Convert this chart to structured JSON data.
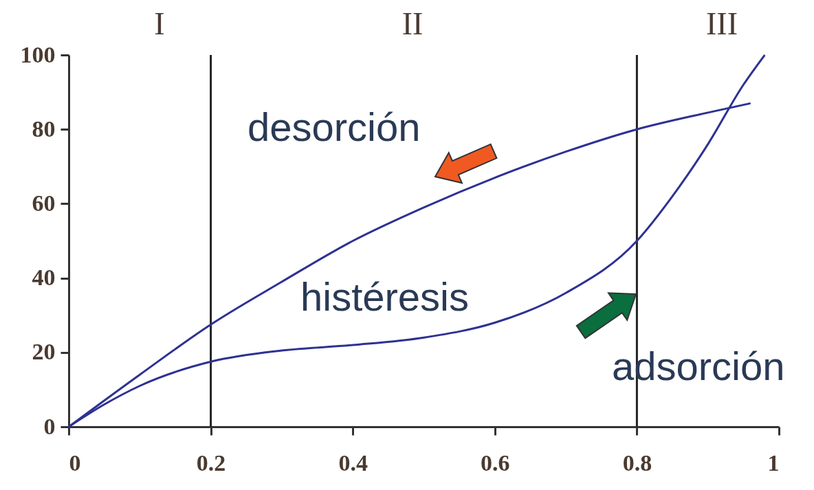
{
  "chart_data": {
    "type": "line",
    "series": [
      {
        "name": "desorción",
        "color": "#2e3192",
        "x": [
          0,
          0.1,
          0.2,
          0.3,
          0.4,
          0.5,
          0.6,
          0.7,
          0.8,
          0.9,
          0.96
        ],
        "values": [
          0,
          14,
          27.5,
          39,
          50,
          59,
          67,
          74,
          80,
          84.5,
          87
        ]
      },
      {
        "name": "adsorción",
        "color": "#2e3192",
        "x": [
          0,
          0.05,
          0.1,
          0.2,
          0.3,
          0.4,
          0.5,
          0.6,
          0.7,
          0.8,
          0.85,
          0.9,
          0.95,
          0.98
        ],
        "values": [
          0,
          6,
          11,
          17.5,
          20.5,
          22,
          24,
          28,
          36,
          50,
          62,
          76,
          92,
          100
        ]
      }
    ],
    "xlim": [
      0,
      1
    ],
    "xticks": [
      0,
      0.2,
      0.4,
      0.6,
      0.8,
      1
    ],
    "ylim": [
      0,
      100
    ],
    "yticks": [
      0,
      20,
      40,
      60,
      80,
      100
    ],
    "grid": false,
    "legend": false,
    "marker": "none",
    "line_style": "solid",
    "ref_lines": [
      {
        "axis": "x",
        "value": 0.2,
        "color": "#222222"
      },
      {
        "axis": "x",
        "value": 0.8,
        "color": "#222222"
      }
    ],
    "annotations": [
      "I",
      "II",
      "III",
      "histéresis"
    ]
  }
}
